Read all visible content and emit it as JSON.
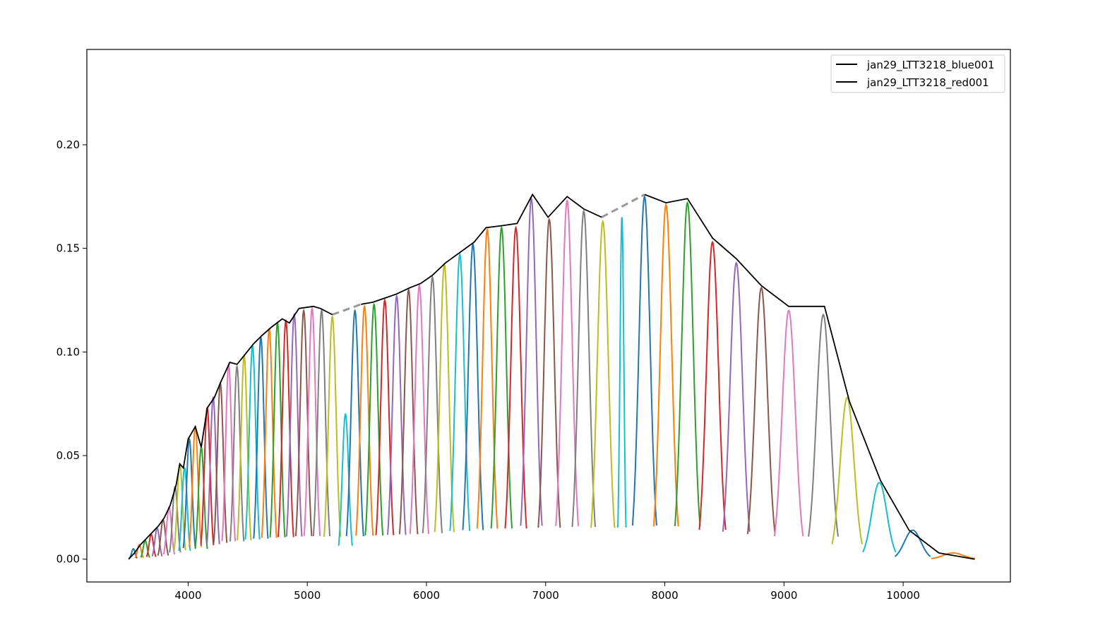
{
  "chart_data": {
    "type": "line",
    "title": "",
    "xlabel": "",
    "ylabel": "",
    "xlim": [
      3150,
      10900
    ],
    "ylim": [
      -0.011,
      0.246
    ],
    "x_ticks": [
      4000,
      5000,
      6000,
      7000,
      8000,
      9000,
      10000
    ],
    "x_tick_labels": [
      "4000",
      "5000",
      "6000",
      "7000",
      "8000",
      "9000",
      "10000"
    ],
    "y_ticks": [
      0.0,
      0.05,
      0.1,
      0.15,
      0.2
    ],
    "y_tick_labels": [
      "0.00",
      "0.05",
      "0.10",
      "0.15",
      "0.20"
    ],
    "grid": false,
    "legend": {
      "placement": "top-right",
      "entries": [
        {
          "label": "jan29_LTT3218_blue001",
          "color": "#000000"
        },
        {
          "label": "jan29_LTT3218_red001",
          "color": "#000000"
        }
      ]
    },
    "envelope_series": [
      {
        "name": "jan29_LTT3218_blue001",
        "color": "#000000",
        "points": [
          [
            3500,
            0.0
          ],
          [
            3550,
            0.003
          ],
          [
            3600,
            0.007
          ],
          [
            3650,
            0.01
          ],
          [
            3700,
            0.013
          ],
          [
            3750,
            0.016
          ],
          [
            3800,
            0.02
          ],
          [
            3850,
            0.026
          ],
          [
            3900,
            0.036
          ],
          [
            3930,
            0.046
          ],
          [
            3960,
            0.044
          ],
          [
            4000,
            0.058
          ],
          [
            4060,
            0.064
          ],
          [
            4110,
            0.054
          ],
          [
            4160,
            0.073
          ],
          [
            4220,
            0.078
          ],
          [
            4270,
            0.085
          ],
          [
            4350,
            0.095
          ],
          [
            4410,
            0.094
          ],
          [
            4480,
            0.099
          ],
          [
            4550,
            0.104
          ],
          [
            4620,
            0.108
          ],
          [
            4700,
            0.112
          ],
          [
            4790,
            0.116
          ],
          [
            4850,
            0.114
          ],
          [
            4930,
            0.121
          ],
          [
            5050,
            0.122
          ],
          [
            5110,
            0.121
          ],
          [
            5210,
            0.118
          ]
        ]
      },
      {
        "name": "jan29_LTT3218_red001",
        "color": "#000000",
        "points": [
          [
            5450,
            0.123
          ],
          [
            5550,
            0.124
          ],
          [
            5650,
            0.126
          ],
          [
            5750,
            0.128
          ],
          [
            5860,
            0.131
          ],
          [
            5950,
            0.133
          ],
          [
            6050,
            0.137
          ],
          [
            6160,
            0.143
          ],
          [
            6280,
            0.148
          ],
          [
            6400,
            0.153
          ],
          [
            6500,
            0.16
          ],
          [
            6640,
            0.161
          ],
          [
            6760,
            0.162
          ],
          [
            6890,
            0.176
          ],
          [
            7020,
            0.165
          ],
          [
            7180,
            0.175
          ],
          [
            7320,
            0.169
          ],
          [
            7470,
            0.165
          ]
        ]
      },
      {
        "name": "jan29_LTT3218_red001",
        "color": "#000000",
        "points": [
          [
            7830,
            0.176
          ],
          [
            8010,
            0.172
          ],
          [
            8190,
            0.174
          ],
          [
            8400,
            0.155
          ],
          [
            8600,
            0.145
          ],
          [
            8810,
            0.132
          ],
          [
            9040,
            0.122
          ],
          [
            9340,
            0.122
          ],
          [
            9550,
            0.076
          ],
          [
            9810,
            0.038
          ],
          [
            10050,
            0.014
          ],
          [
            10300,
            0.003
          ],
          [
            10600,
            0.0
          ]
        ]
      }
    ],
    "gap_segments": [
      {
        "color": "#999999",
        "style": "dashed",
        "points": [
          [
            5210,
            0.118
          ],
          [
            5450,
            0.123
          ]
        ]
      },
      {
        "color": "#999999",
        "style": "dashed",
        "points": [
          [
            7470,
            0.165
          ],
          [
            7830,
            0.176
          ]
        ]
      }
    ],
    "colors": [
      "#1f77b4",
      "#ff7f0e",
      "#2ca02c",
      "#d62728",
      "#9467bd",
      "#8c564b",
      "#e377c2",
      "#7f7f7f",
      "#bcbd22",
      "#17becf"
    ],
    "order_peaks": [
      {
        "c": 3540,
        "p": 0.005,
        "w": 28
      },
      {
        "c": 3590,
        "p": 0.007,
        "w": 30
      },
      {
        "c": 3640,
        "p": 0.009,
        "w": 32
      },
      {
        "c": 3690,
        "p": 0.012,
        "w": 34
      },
      {
        "c": 3740,
        "p": 0.015,
        "w": 36
      },
      {
        "c": 3790,
        "p": 0.019,
        "w": 38
      },
      {
        "c": 3840,
        "p": 0.025,
        "w": 40
      },
      {
        "c": 3890,
        "p": 0.035,
        "w": 40
      },
      {
        "c": 3930,
        "p": 0.046,
        "w": 42
      },
      {
        "c": 3970,
        "p": 0.044,
        "w": 42
      },
      {
        "c": 4010,
        "p": 0.058,
        "w": 44
      },
      {
        "c": 4060,
        "p": 0.064,
        "w": 44
      },
      {
        "c": 4110,
        "p": 0.054,
        "w": 44
      },
      {
        "c": 4160,
        "p": 0.073,
        "w": 46
      },
      {
        "c": 4210,
        "p": 0.078,
        "w": 46
      },
      {
        "c": 4270,
        "p": 0.085,
        "w": 48
      },
      {
        "c": 4340,
        "p": 0.094,
        "w": 48
      },
      {
        "c": 4410,
        "p": 0.093,
        "w": 50
      },
      {
        "c": 4470,
        "p": 0.098,
        "w": 50
      },
      {
        "c": 4540,
        "p": 0.103,
        "w": 52
      },
      {
        "c": 4610,
        "p": 0.107,
        "w": 52
      },
      {
        "c": 4680,
        "p": 0.111,
        "w": 54
      },
      {
        "c": 4750,
        "p": 0.114,
        "w": 54
      },
      {
        "c": 4820,
        "p": 0.115,
        "w": 56
      },
      {
        "c": 4890,
        "p": 0.118,
        "w": 56
      },
      {
        "c": 4970,
        "p": 0.12,
        "w": 58
      },
      {
        "c": 5040,
        "p": 0.121,
        "w": 58
      },
      {
        "c": 5120,
        "p": 0.12,
        "w": 60
      },
      {
        "c": 5210,
        "p": 0.117,
        "w": 60
      },
      {
        "c": 5320,
        "p": 0.07,
        "w": 50
      },
      {
        "c": 5400,
        "p": 0.12,
        "w": 62
      },
      {
        "c": 5480,
        "p": 0.122,
        "w": 62
      },
      {
        "c": 5560,
        "p": 0.123,
        "w": 64
      },
      {
        "c": 5650,
        "p": 0.125,
        "w": 64
      },
      {
        "c": 5750,
        "p": 0.127,
        "w": 66
      },
      {
        "c": 5850,
        "p": 0.13,
        "w": 66
      },
      {
        "c": 5940,
        "p": 0.132,
        "w": 68
      },
      {
        "c": 6050,
        "p": 0.136,
        "w": 70
      },
      {
        "c": 6150,
        "p": 0.142,
        "w": 70
      },
      {
        "c": 6280,
        "p": 0.147,
        "w": 72
      },
      {
        "c": 6390,
        "p": 0.152,
        "w": 74
      },
      {
        "c": 6510,
        "p": 0.159,
        "w": 74
      },
      {
        "c": 6630,
        "p": 0.16,
        "w": 76
      },
      {
        "c": 6750,
        "p": 0.16,
        "w": 78
      },
      {
        "c": 6880,
        "p": 0.174,
        "w": 78
      },
      {
        "c": 7030,
        "p": 0.164,
        "w": 80
      },
      {
        "c": 7180,
        "p": 0.173,
        "w": 82
      },
      {
        "c": 7320,
        "p": 0.168,
        "w": 84
      },
      {
        "c": 7480,
        "p": 0.163,
        "w": 86
      },
      {
        "c": 7640,
        "p": 0.165,
        "w": 30
      },
      {
        "c": 7830,
        "p": 0.175,
        "w": 88
      },
      {
        "c": 8010,
        "p": 0.171,
        "w": 90
      },
      {
        "c": 8190,
        "p": 0.172,
        "w": 92
      },
      {
        "c": 8400,
        "p": 0.153,
        "w": 96
      },
      {
        "c": 8600,
        "p": 0.143,
        "w": 98
      },
      {
        "c": 8810,
        "p": 0.131,
        "w": 100
      },
      {
        "c": 9040,
        "p": 0.12,
        "w": 104
      },
      {
        "c": 9330,
        "p": 0.118,
        "w": 108
      },
      {
        "c": 9530,
        "p": 0.078,
        "w": 110
      },
      {
        "c": 9800,
        "p": 0.037,
        "w": 120
      },
      {
        "c": 10080,
        "p": 0.014,
        "w": 130
      },
      {
        "c": 10420,
        "p": 0.003,
        "w": 160
      }
    ]
  }
}
